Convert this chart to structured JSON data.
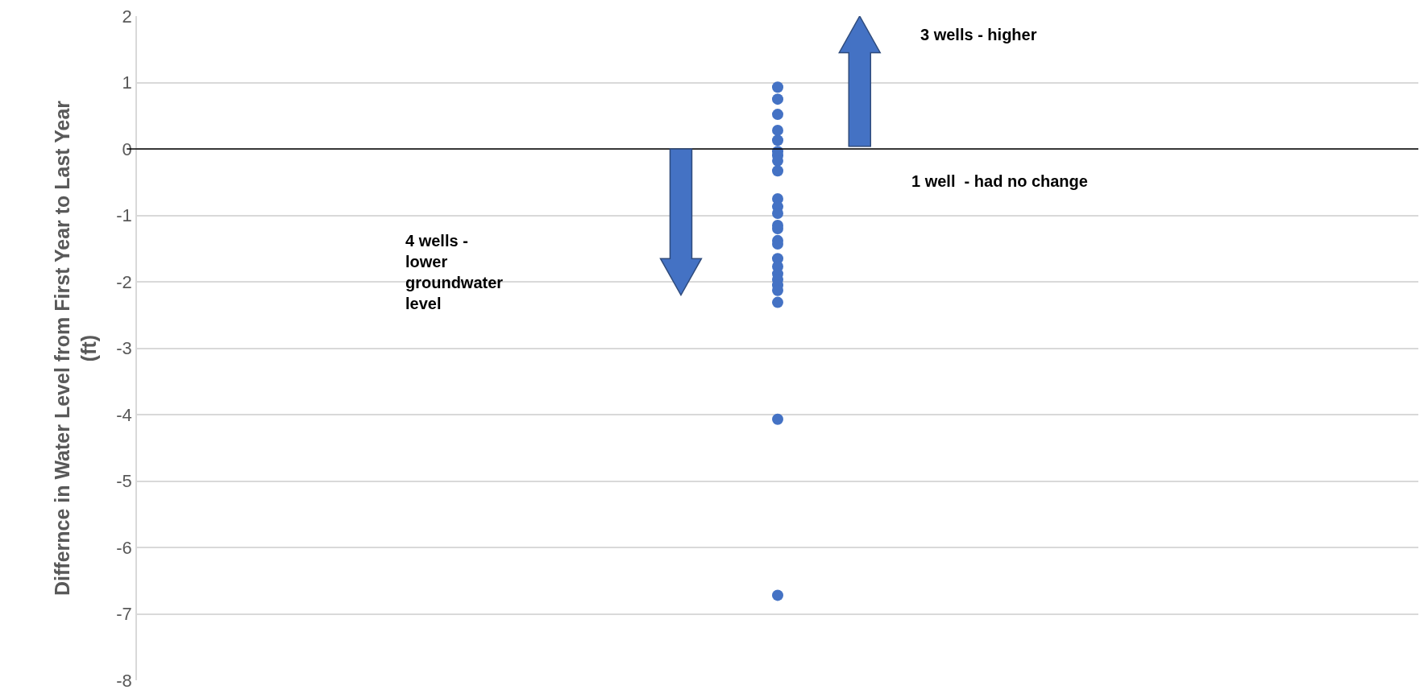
{
  "chart_data": {
    "type": "scatter",
    "ylabel": "Differnce in Water Level from First Year to Last Year\n(ft)",
    "categories": [
      null
    ],
    "series": [
      {
        "color": "#4472c4",
        "x": [
          null,
          null,
          null,
          null,
          null,
          null,
          null,
          null,
          null,
          null,
          null,
          null,
          null,
          null,
          null,
          null,
          null,
          null,
          null,
          null,
          null,
          null,
          null,
          null
        ],
        "values": [
          0.93,
          0.75,
          0.52,
          0.28,
          0.13,
          -0.04,
          -0.1,
          -0.18,
          -0.33,
          -0.75,
          -0.87,
          -0.97,
          -1.15,
          -1.2,
          -1.38,
          -1.43,
          -1.65,
          -1.77,
          -1.88,
          -1.97,
          -2.05,
          -2.13,
          -2.31,
          -4.07
        ]
      },
      {
        "color": "#4472c4",
        "x": [
          null
        ],
        "values": [
          -6.72
        ]
      }
    ],
    "ylim": [
      -8,
      2
    ],
    "yticks": [
      -8,
      -7,
      -6,
      -5,
      -4,
      -3,
      -2,
      -1,
      0,
      1,
      2
    ],
    "grid": "y",
    "marker": "circle",
    "ref_lines": [
      {
        "axis": "y",
        "value": 0,
        "color": "#000000"
      }
    ],
    "annotations": [
      "3 wells - higher",
      "1 well  - had no change",
      "4 wells -\nlower\ngroundwater\nlevel"
    ]
  }
}
